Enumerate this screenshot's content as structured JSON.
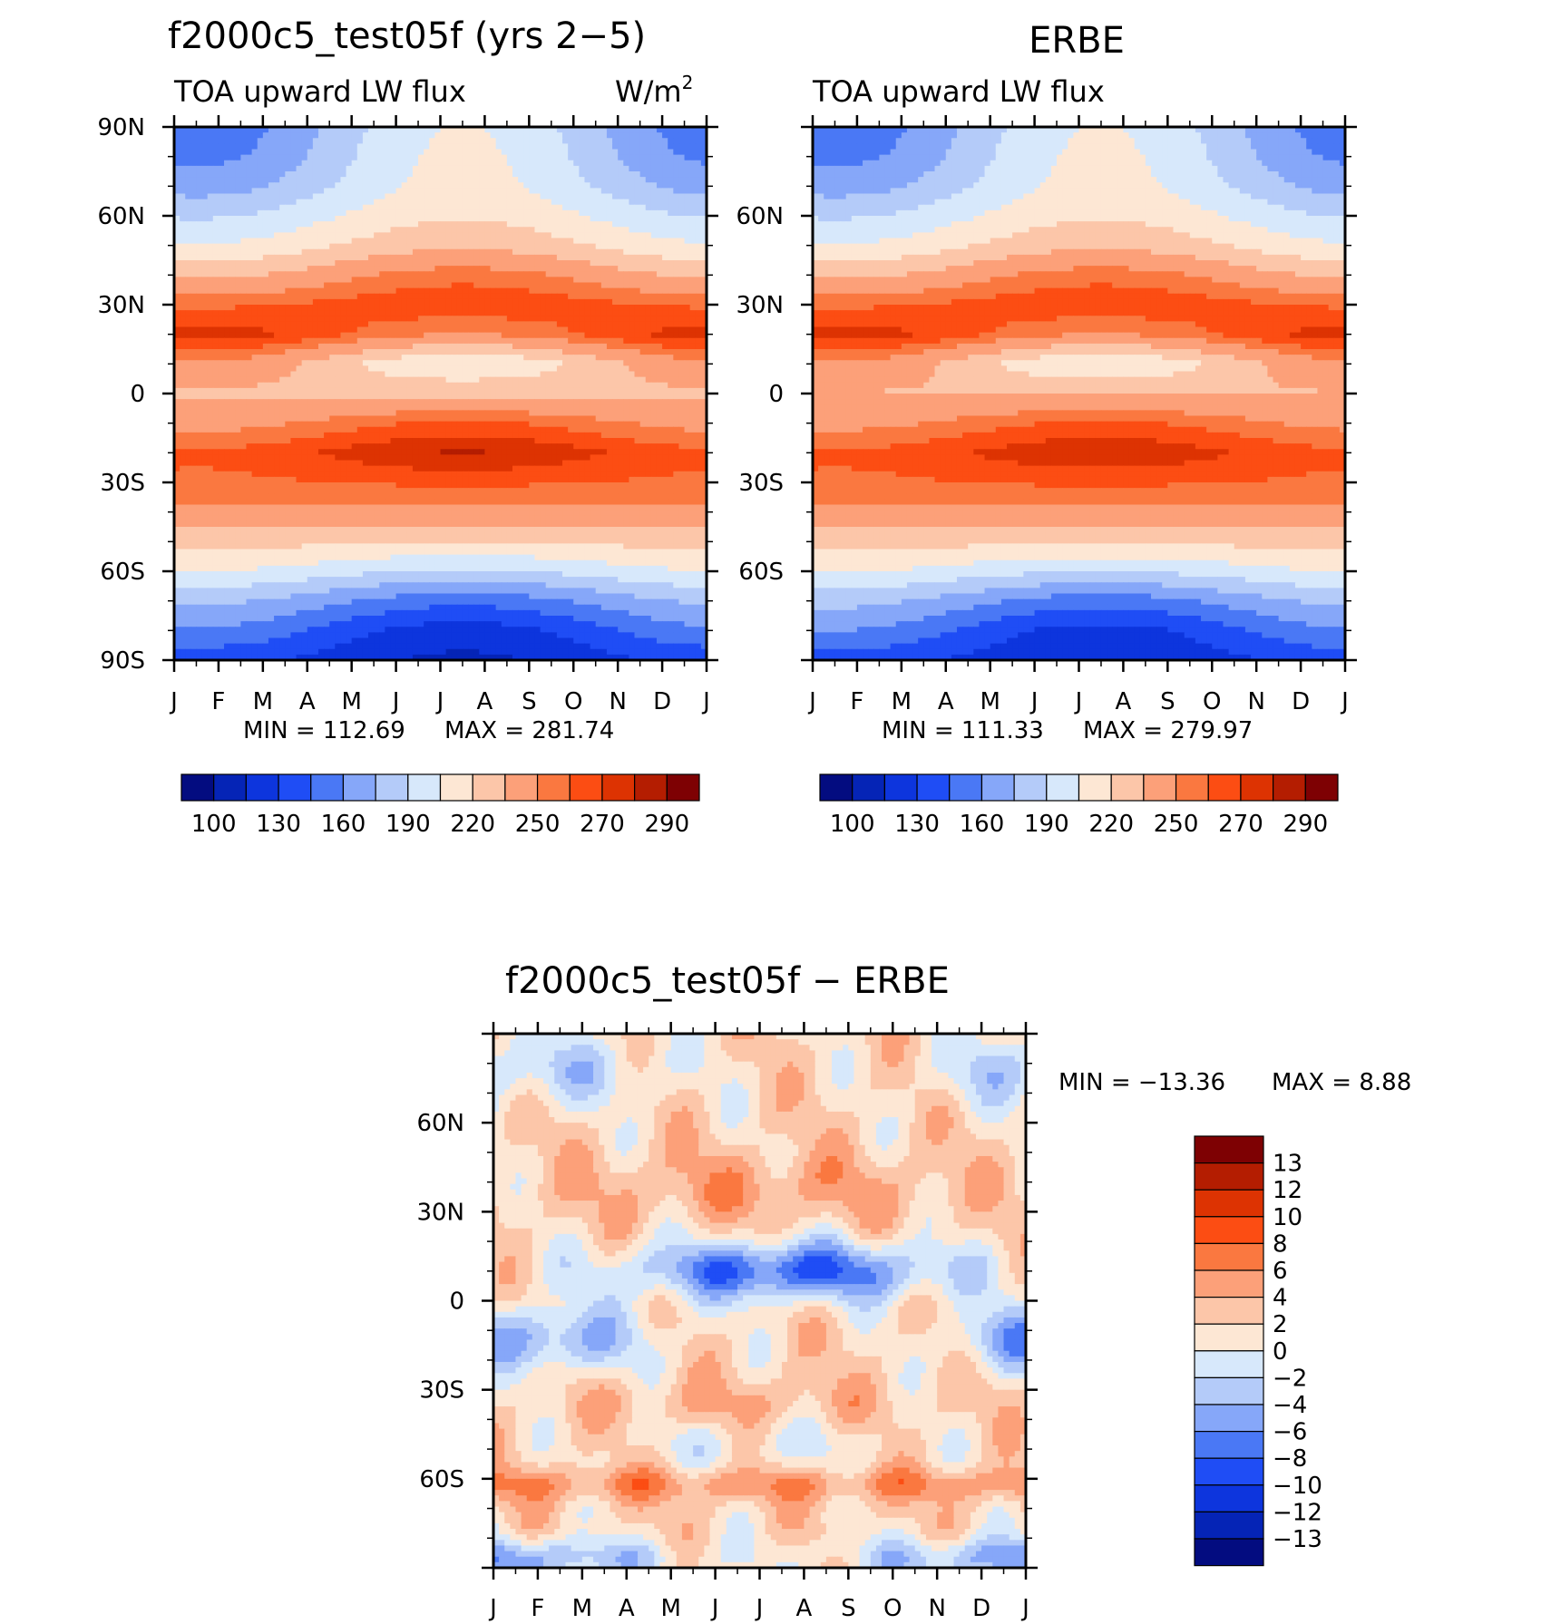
{
  "chart_data": [
    {
      "type": "heatmap",
      "title": "f2000c5_test05f (yrs 2−5)",
      "subtitle_left": "TOA upward LW flux",
      "units": "W/m",
      "units_sup": "2",
      "x_ticks": [
        "J",
        "F",
        "M",
        "A",
        "M",
        "J",
        "J",
        "A",
        "S",
        "O",
        "N",
        "D",
        "J"
      ],
      "y_ticks": [
        "90N",
        "60N",
        "30N",
        "0",
        "30S",
        "60S",
        "90S"
      ],
      "ylim": [
        -90,
        90
      ],
      "stats": {
        "min_label": "MIN  =  112.69",
        "max_label": "MAX  =  281.74",
        "min": 112.69,
        "max": 281.74
      },
      "profile": {
        "lat": [
          -90,
          -80,
          -70,
          -60,
          -50,
          -40,
          -30,
          -20,
          -10,
          0,
          10,
          20,
          30,
          40,
          50,
          60,
          70,
          80,
          90
        ],
        "djf": [
          135,
          158,
          178,
          205,
          226,
          246,
          258,
          262,
          245,
          232,
          248,
          276,
          258,
          232,
          206,
          188,
          168,
          156,
          150
        ],
        "jja": [
          112,
          122,
          150,
          188,
          220,
          246,
          262,
          281,
          262,
          232,
          206,
          250,
          268,
          256,
          232,
          218,
          210,
          208,
          206
        ]
      }
    },
    {
      "type": "heatmap",
      "title": "ERBE",
      "subtitle_left": "TOA upward LW flux",
      "x_ticks": [
        "J",
        "F",
        "M",
        "A",
        "M",
        "J",
        "J",
        "A",
        "S",
        "O",
        "N",
        "D",
        "J"
      ],
      "y_ticks": [
        "60N",
        "30N",
        "0",
        "30S",
        "60S"
      ],
      "ylim": [
        -90,
        90
      ],
      "stats": {
        "min_label": "MIN  =  111.33",
        "max_label": "MAX  =  279.97",
        "min": 111.33,
        "max": 279.97
      },
      "profile": {
        "lat": [
          -90,
          -80,
          -70,
          -60,
          -50,
          -40,
          -30,
          -20,
          -10,
          0,
          10,
          20,
          30,
          40,
          50,
          60,
          70,
          80,
          90
        ],
        "djf": [
          137,
          160,
          180,
          206,
          226,
          246,
          258,
          262,
          246,
          234,
          248,
          276,
          258,
          232,
          206,
          188,
          168,
          156,
          150
        ],
        "jja": [
          115,
          124,
          152,
          190,
          222,
          246,
          262,
          278,
          262,
          234,
          206,
          250,
          268,
          256,
          232,
          218,
          210,
          208,
          206
        ]
      }
    },
    {
      "type": "heatmap",
      "title": "f2000c5_test05f − ERBE",
      "x_ticks": [
        "J",
        "F",
        "M",
        "A",
        "M",
        "J",
        "J",
        "A",
        "S",
        "O",
        "N",
        "D",
        "J"
      ],
      "y_ticks": [
        "60N",
        "30N",
        "0",
        "30S",
        "60S"
      ],
      "ylim": [
        -90,
        90
      ],
      "stats": {
        "min_label": "MIN  =  −13.36",
        "max_label": "MAX  =     8.88",
        "min": -13.36,
        "max": 8.88
      }
    }
  ],
  "colorbar_main": {
    "colors": [
      "#030c80",
      "#0524b6",
      "#0d35dd",
      "#1f4df5",
      "#4a78f5",
      "#86a7f9",
      "#b4cbf9",
      "#d7e8fb",
      "#fde7d4",
      "#fcc6a9",
      "#fca079",
      "#fa7840",
      "#fc4d13",
      "#dd3302",
      "#b41d01",
      "#7e0103"
    ],
    "labels": [
      "100",
      "130",
      "160",
      "190",
      "220",
      "250",
      "270",
      "290"
    ]
  },
  "colorbar_diff": {
    "colors": [
      "#7e0103",
      "#b41d01",
      "#dd3302",
      "#fc4d13",
      "#fa7840",
      "#fca079",
      "#fcc6a9",
      "#fde7d4",
      "#d7e8fb",
      "#b4cbf9",
      "#86a7f9",
      "#4a78f5",
      "#1f4df5",
      "#0d35dd",
      "#0524b6",
      "#030c80"
    ],
    "labels": [
      "13",
      "12",
      "10",
      "8",
      "6",
      "4",
      "2",
      "0",
      "−2",
      "−4",
      "−6",
      "−8",
      "−10",
      "−12",
      "−13"
    ]
  }
}
